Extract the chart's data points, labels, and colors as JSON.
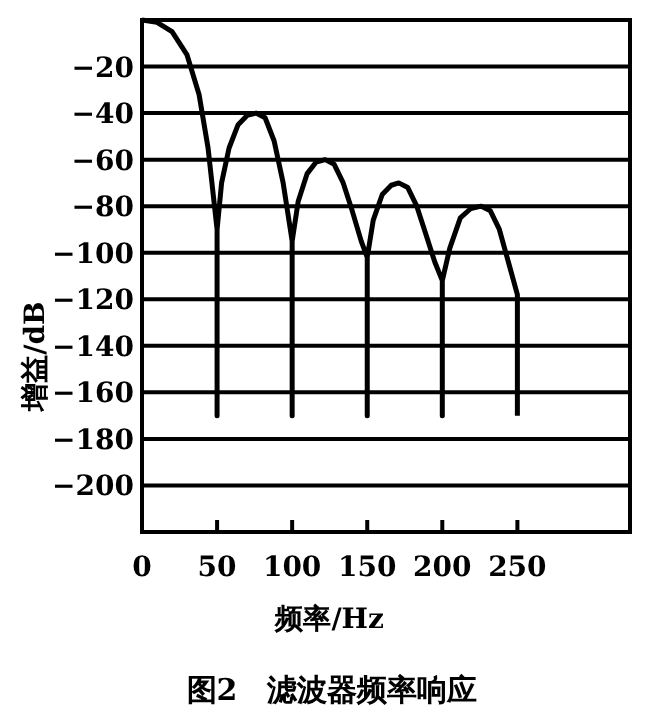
{
  "chart_data": {
    "type": "line",
    "xlabel": "频率/Hz",
    "ylabel": "增益/dB",
    "annotations": [
      "图2　滤波器频率响应"
    ],
    "xlim": [
      0,
      325
    ],
    "ylim": [
      -220,
      0
    ],
    "xticks": [
      0,
      50,
      100,
      150,
      200,
      250
    ],
    "yticks": [
      {
        "value": 0,
        "label": null
      },
      -20,
      -40,
      -60,
      -80,
      -100,
      -120,
      -140,
      -160,
      -180,
      -200
    ],
    "grid": "y",
    "series": [
      {
        "color": "#000000",
        "x": [
          0,
          10,
          20,
          30,
          38,
          44,
          50,
          50,
          50,
          53,
          58,
          64,
          70,
          76,
          82,
          88,
          94,
          100,
          100,
          100,
          104,
          110,
          116,
          122,
          128,
          134,
          140,
          146,
          150,
          150,
          150,
          154,
          160,
          166,
          171,
          177,
          183,
          189,
          195,
          200,
          200,
          200,
          205,
          212,
          219,
          226,
          232,
          238,
          244,
          250,
          250
        ],
        "values": [
          0,
          -1,
          -5,
          -15,
          -32,
          -55,
          -90,
          -170,
          -90,
          -70,
          -55,
          -45,
          -41,
          -40,
          -42,
          -52,
          -70,
          -95,
          -170,
          -95,
          -78,
          -66,
          -61,
          -60,
          -62,
          -70,
          -82,
          -95,
          -102,
          -170,
          -102,
          -86,
          -75,
          -71,
          -70,
          -72,
          -80,
          -92,
          -104,
          -112,
          -170,
          -112,
          -98,
          -85,
          -81,
          -80,
          -82,
          -90,
          -104,
          -118,
          -170
        ]
      }
    ]
  }
}
